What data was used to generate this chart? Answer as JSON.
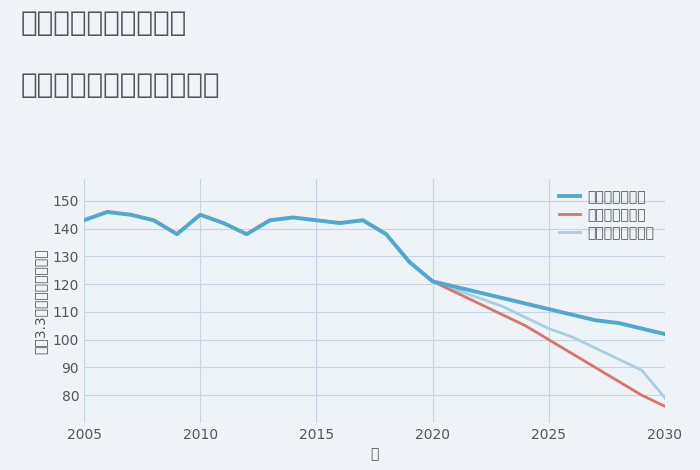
{
  "title_line1": "大阪府貝塚市地蔵堂の",
  "title_line2": "中古マンションの価格推移",
  "xlabel": "年",
  "ylabel": "坪（3.3㎡）単価（万円）",
  "ylim": [
    70,
    158
  ],
  "xlim": [
    2005,
    2030
  ],
  "yticks": [
    80,
    90,
    100,
    110,
    120,
    130,
    140,
    150
  ],
  "xticks": [
    2005,
    2010,
    2015,
    2020,
    2025,
    2030
  ],
  "good_scenario": {
    "label": "グッドシナリオ",
    "color": "#4fa8d0",
    "linewidth": 2.8,
    "x": [
      2005,
      2006,
      2007,
      2008,
      2009,
      2010,
      2011,
      2012,
      2013,
      2014,
      2015,
      2016,
      2017,
      2018,
      2019,
      2020,
      2021,
      2022,
      2023,
      2024,
      2025,
      2026,
      2027,
      2028,
      2029,
      2030
    ],
    "y": [
      143,
      146,
      145,
      143,
      138,
      145,
      142,
      138,
      143,
      144,
      143,
      142,
      143,
      138,
      128,
      121,
      119,
      117,
      115,
      113,
      111,
      109,
      107,
      106,
      104,
      102
    ]
  },
  "bad_scenario": {
    "label": "バッドシナリオ",
    "color": "#d9736b",
    "linewidth": 2.0,
    "x": [
      2020,
      2021,
      2022,
      2023,
      2024,
      2025,
      2026,
      2027,
      2028,
      2029,
      2030
    ],
    "y": [
      121,
      117,
      113,
      109,
      105,
      100,
      95,
      90,
      85,
      80,
      76
    ]
  },
  "normal_scenario": {
    "label": "ノーマルシナリオ",
    "color": "#a8cfe0",
    "linewidth": 2.0,
    "x": [
      2005,
      2006,
      2007,
      2008,
      2009,
      2010,
      2011,
      2012,
      2013,
      2014,
      2015,
      2016,
      2017,
      2018,
      2019,
      2020,
      2021,
      2022,
      2023,
      2024,
      2025,
      2026,
      2027,
      2028,
      2029,
      2030
    ],
    "y": [
      143,
      146,
      145,
      143,
      138,
      145,
      142,
      138,
      143,
      144,
      143,
      142,
      143,
      138,
      128,
      121,
      118,
      115,
      112,
      108,
      104,
      101,
      97,
      93,
      89,
      79
    ]
  },
  "background_color": "#f0f4f8",
  "plot_bg_color": "#eef3f8",
  "grid_color": "#c5d5e5",
  "title_color": "#555555",
  "title_fontsize": 20,
  "axis_label_fontsize": 10,
  "tick_fontsize": 10,
  "legend_fontsize": 10
}
